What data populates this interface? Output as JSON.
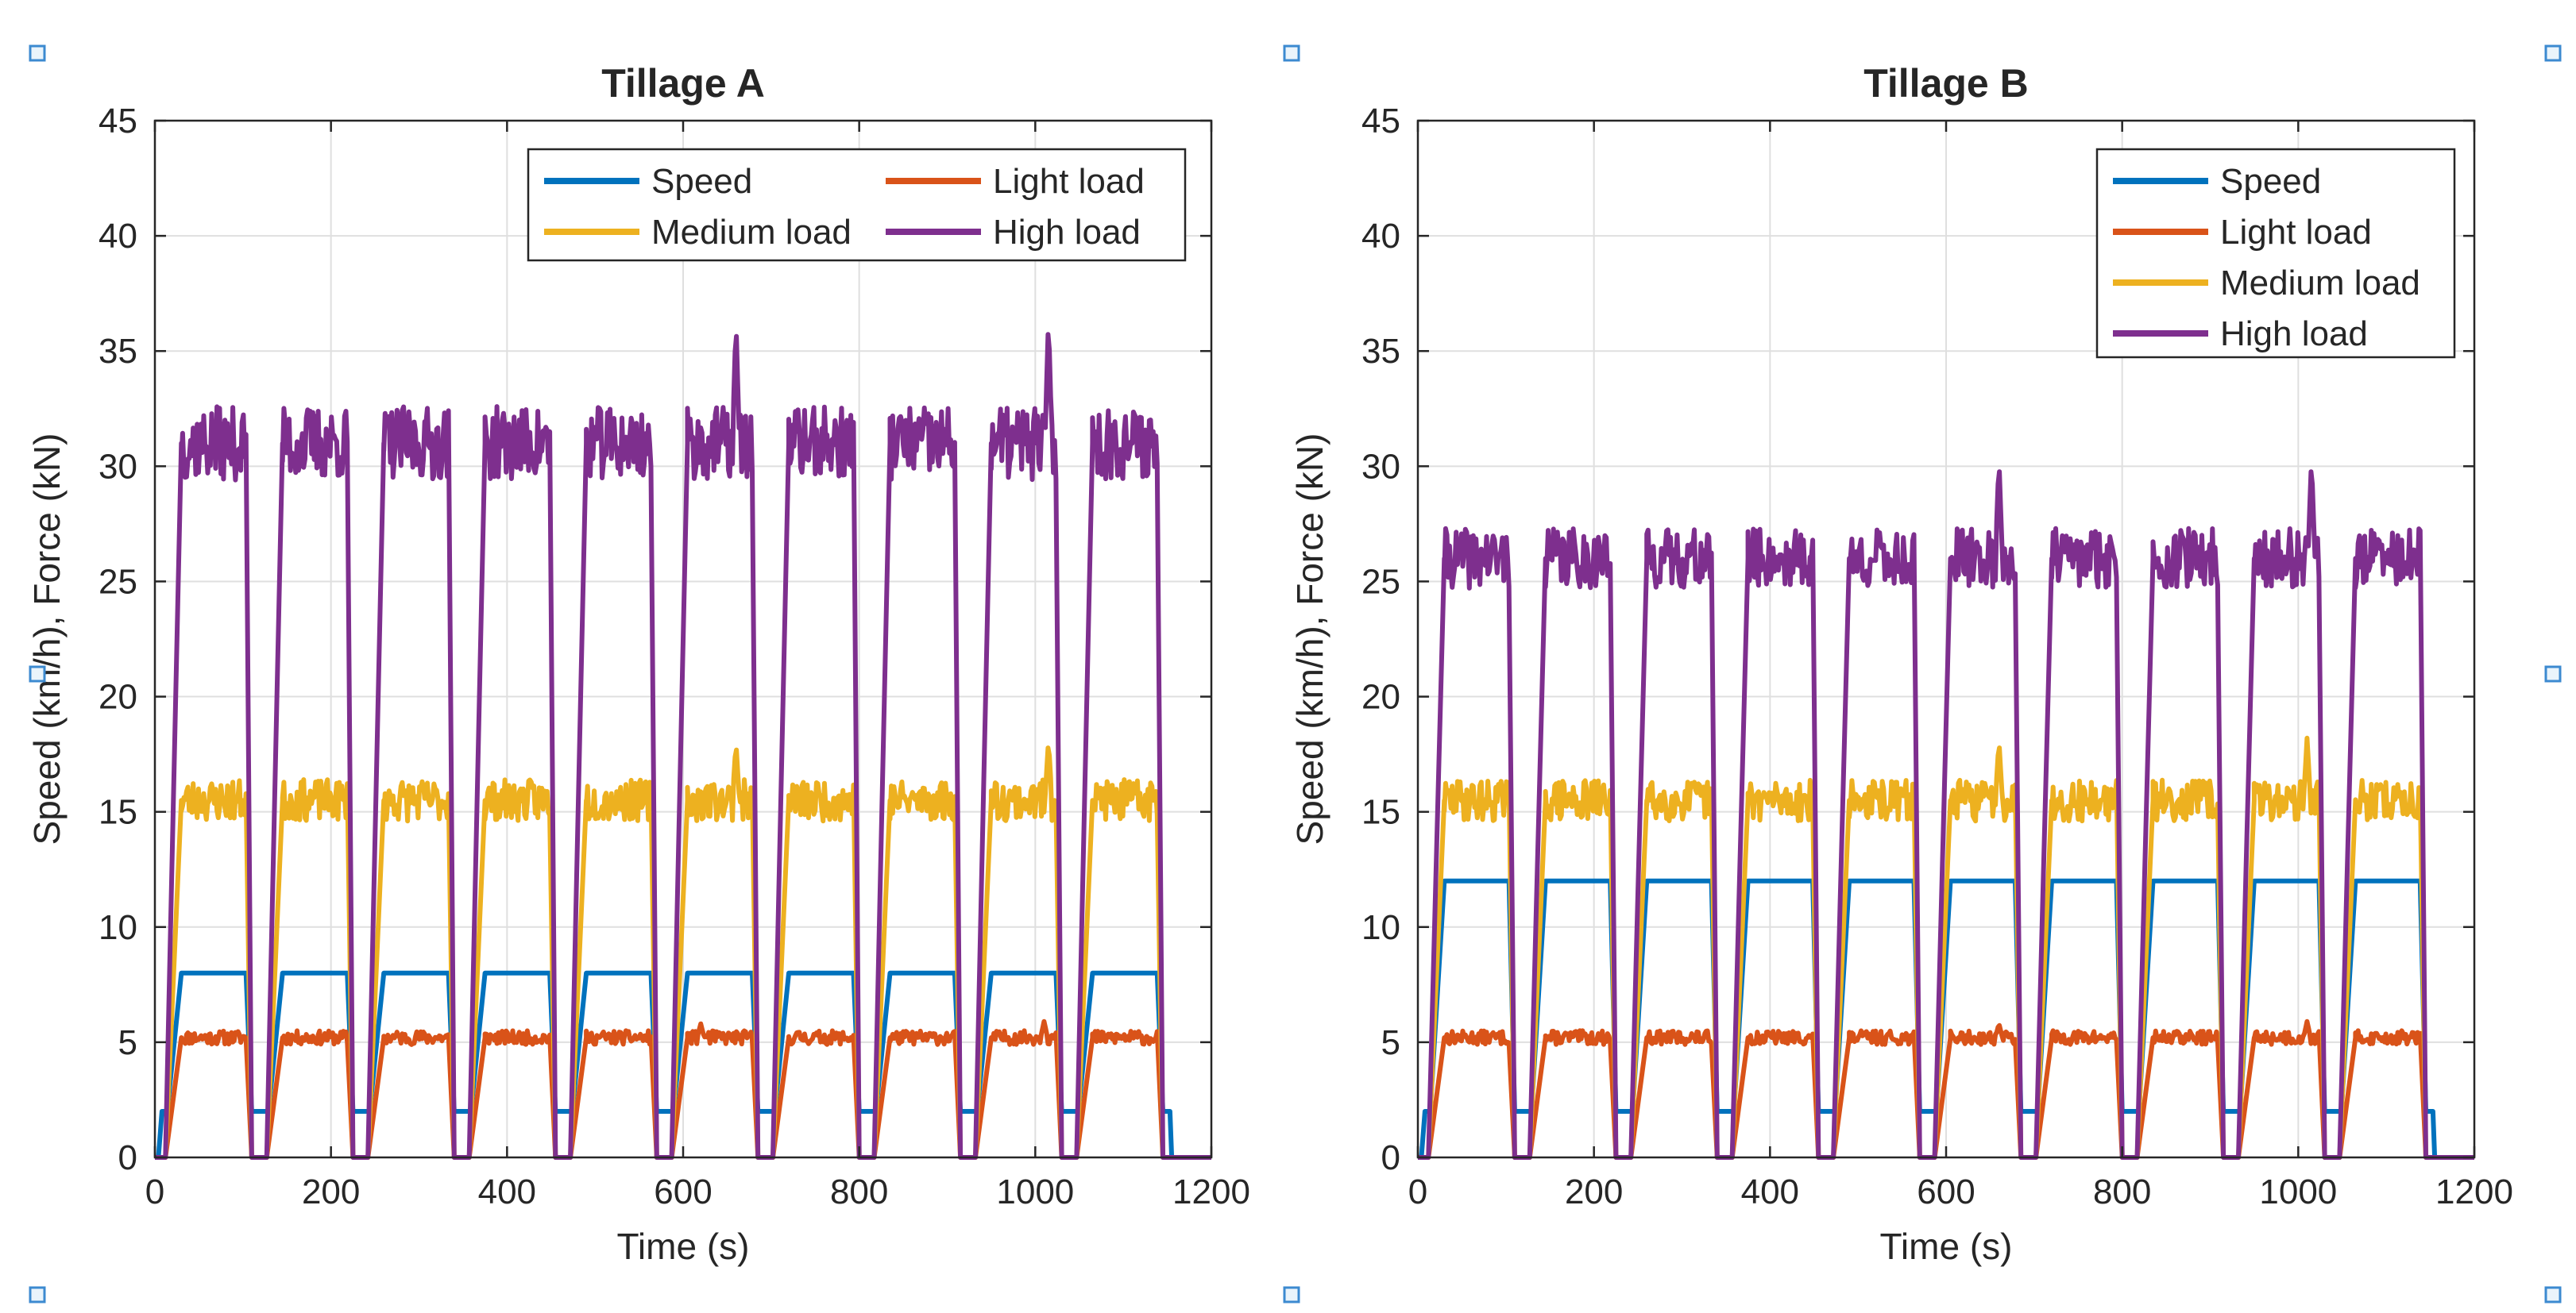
{
  "chart_data": [
    {
      "type": "line",
      "title": "Tillage A",
      "xlabel": "Time (s)",
      "ylabel": "Speed (km/h), Force (kN)",
      "xlim": [
        0,
        1200
      ],
      "ylim": [
        0,
        45
      ],
      "xticks": [
        0,
        200,
        400,
        600,
        800,
        1000,
        1200
      ],
      "yticks": [
        0,
        5,
        10,
        15,
        20,
        25,
        30,
        35,
        40,
        45
      ],
      "grid": true,
      "legend_position": "top-right",
      "legend_layout": "two-columns",
      "pass_starts_s": [
        20,
        135,
        250,
        365,
        480,
        595,
        710,
        825,
        940,
        1055
      ],
      "pass_ends_s": [
        110,
        225,
        340,
        455,
        570,
        685,
        800,
        915,
        1030,
        1145
      ],
      "end_time_s": 1200,
      "series": [
        {
          "name": "Speed",
          "color": "#0072BD",
          "turn_value": 2,
          "work_value": 8,
          "noise": 0,
          "seed": 3
        },
        {
          "name": "Light load",
          "color": "#D95319",
          "turn_value": 0,
          "work_value": 5.2,
          "noise": 0.3,
          "seed": 11,
          "spikes": [
            [
              620,
              0.6
            ],
            [
              1010,
              0.7
            ]
          ]
        },
        {
          "name": "Medium load",
          "color": "#EDB120",
          "turn_value": 0,
          "work_value": 15.5,
          "noise": 0.9,
          "seed": 23,
          "spikes": [
            [
              660,
              2.5
            ],
            [
              1015,
              2.6
            ]
          ]
        },
        {
          "name": "High load",
          "color": "#7E2F8E",
          "turn_value": 0,
          "work_value": 31,
          "noise": 1.6,
          "seed": 37,
          "spikes": [
            [
              660,
              5.3
            ],
            [
              1015,
              5.4
            ]
          ]
        }
      ]
    },
    {
      "type": "line",
      "title": "Tillage B",
      "xlabel": "Time (s)",
      "ylabel": "Speed (km/h), Force (kN)",
      "xlim": [
        0,
        1200
      ],
      "ylim": [
        0,
        45
      ],
      "xticks": [
        0,
        200,
        400,
        600,
        800,
        1000,
        1200
      ],
      "yticks": [
        0,
        5,
        10,
        15,
        20,
        25,
        30,
        35,
        40,
        45
      ],
      "grid": true,
      "legend_position": "top-right",
      "legend_layout": "one-column",
      "pass_starts_s": [
        20,
        135,
        250,
        365,
        480,
        595,
        710,
        825,
        940,
        1055
      ],
      "pass_ends_s": [
        110,
        225,
        340,
        455,
        570,
        685,
        800,
        915,
        1030,
        1145
      ],
      "end_time_s": 1200,
      "series": [
        {
          "name": "Speed",
          "color": "#0072BD",
          "turn_value": 2,
          "work_value": 12,
          "noise": 0,
          "seed": 5
        },
        {
          "name": "Light load",
          "color": "#D95319",
          "turn_value": 0,
          "work_value": 5.2,
          "noise": 0.3,
          "seed": 13,
          "spikes": [
            [
              660,
              0.6
            ],
            [
              1010,
              0.7
            ]
          ]
        },
        {
          "name": "Medium load",
          "color": "#EDB120",
          "turn_value": 0,
          "work_value": 15.5,
          "noise": 0.9,
          "seed": 29,
          "spikes": [
            [
              660,
              2.6
            ],
            [
              1010,
              2.7
            ]
          ]
        },
        {
          "name": "High load",
          "color": "#7E2F8E",
          "turn_value": 0,
          "work_value": 26,
          "noise": 1.3,
          "seed": 41,
          "spikes": [
            [
              660,
              4.3
            ],
            [
              1015,
              4.3
            ]
          ]
        }
      ]
    }
  ]
}
